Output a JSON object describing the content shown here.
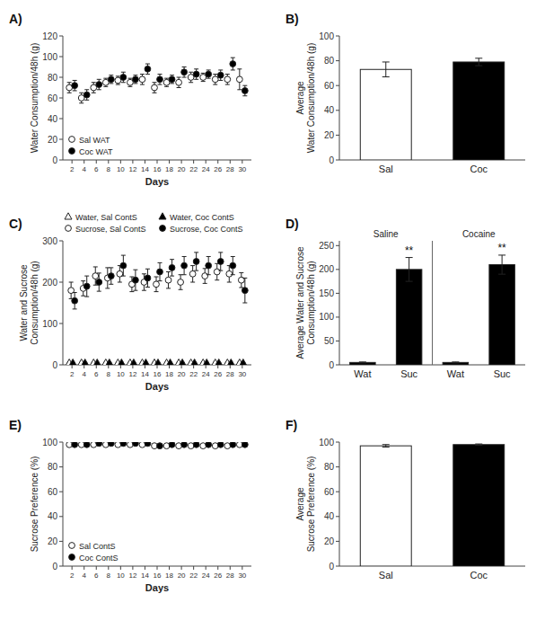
{
  "chart_data": [
    {
      "type": "scatter",
      "title": "A)",
      "x_label": "Days",
      "y_label": "Water Consumption/48h (g)",
      "x": [
        2,
        4,
        6,
        8,
        10,
        12,
        14,
        16,
        18,
        20,
        22,
        24,
        26,
        28,
        30
      ],
      "xlim": [
        0.5,
        31.5
      ],
      "xticks": [
        2,
        4,
        6,
        8,
        10,
        12,
        14,
        16,
        18,
        20,
        22,
        24,
        26,
        28,
        30
      ],
      "ylim": [
        0,
        120
      ],
      "yticks": [
        0,
        20,
        40,
        60,
        80,
        100,
        120
      ],
      "legend": "lower left",
      "series": [
        {
          "name": "Sal WAT",
          "color": "#ffffff",
          "marker": "circle",
          "values": [
            70,
            60,
            70,
            75,
            77,
            75,
            78,
            70,
            75,
            75,
            80,
            80,
            78,
            78,
            78
          ],
          "errors": [
            5,
            5,
            5,
            4,
            4,
            4,
            5,
            5,
            4,
            5,
            5,
            4,
            5,
            5,
            10
          ]
        },
        {
          "name": "Coc WAT",
          "color": "#000000",
          "marker": "circle",
          "values": [
            72,
            63,
            73,
            78,
            80,
            78,
            88,
            78,
            78,
            85,
            83,
            83,
            82,
            93,
            67
          ],
          "errors": [
            5,
            5,
            5,
            4,
            5,
            4,
            5,
            5,
            4,
            5,
            5,
            4,
            5,
            6,
            5
          ]
        }
      ]
    },
    {
      "type": "bar",
      "title": "B)",
      "y_label": "Average\nWater Consumption/48h (g)",
      "categories": [
        "Sal",
        "Coc"
      ],
      "values": [
        73,
        79
      ],
      "errors": [
        6,
        3
      ],
      "colors": [
        "#ffffff",
        "#000000"
      ],
      "ylim": [
        0,
        100
      ],
      "yticks": [
        0,
        20,
        40,
        60,
        80,
        100
      ]
    },
    {
      "type": "scatter",
      "title": "C)",
      "x_label": "Days",
      "y_label": "Water and Sucrose\nConsumption/48h (g)",
      "x": [
        2,
        4,
        6,
        8,
        10,
        12,
        14,
        16,
        18,
        20,
        22,
        24,
        26,
        28,
        30
      ],
      "xlim": [
        0.5,
        31.5
      ],
      "xticks": [
        2,
        4,
        6,
        8,
        10,
        12,
        14,
        16,
        18,
        20,
        22,
        24,
        26,
        28,
        30
      ],
      "ylim": [
        0,
        300
      ],
      "yticks": [
        0,
        100,
        200,
        300
      ],
      "legend": "upper left",
      "series": [
        {
          "name": "Water, Sal ContS",
          "color": "#ffffff",
          "marker": "triangle",
          "values": [
            5,
            5,
            5,
            5,
            5,
            5,
            5,
            5,
            5,
            5,
            5,
            5,
            5,
            5,
            5
          ],
          "errors": [
            1,
            1,
            1,
            1,
            1,
            1,
            1,
            1,
            1,
            1,
            1,
            1,
            1,
            1,
            1
          ]
        },
        {
          "name": "Sucrose, Sal ContS",
          "color": "#ffffff",
          "marker": "circle",
          "values": [
            180,
            185,
            215,
            210,
            220,
            195,
            200,
            195,
            205,
            200,
            220,
            215,
            225,
            220,
            205
          ],
          "errors": [
            20,
            18,
            22,
            25,
            20,
            18,
            20,
            18,
            20,
            18,
            20,
            18,
            20,
            20,
            18
          ]
        },
        {
          "name": "Water, Coc ContS",
          "color": "#000000",
          "marker": "triangle",
          "values": [
            5,
            5,
            5,
            5,
            5,
            5,
            5,
            5,
            5,
            5,
            5,
            5,
            5,
            5,
            5
          ],
          "errors": [
            1,
            1,
            1,
            1,
            1,
            1,
            1,
            1,
            1,
            1,
            1,
            1,
            1,
            1,
            1
          ]
        },
        {
          "name": "Sucrose, Coc ContS",
          "color": "#000000",
          "marker": "circle",
          "values": [
            155,
            190,
            200,
            215,
            240,
            205,
            210,
            225,
            235,
            240,
            250,
            240,
            250,
            240,
            180
          ],
          "errors": [
            20,
            25,
            22,
            20,
            25,
            25,
            22,
            22,
            20,
            22,
            22,
            22,
            22,
            22,
            30
          ]
        }
      ]
    },
    {
      "type": "bar",
      "title": "D)",
      "y_label": "Average Water and Sucrose\nConsumption/48h (g)",
      "categories": [
        "Wat",
        "Suc",
        "Wat",
        "Suc"
      ],
      "values": [
        5,
        200,
        5,
        210
      ],
      "errors": [
        1,
        25,
        1,
        20
      ],
      "color": "#000000",
      "groups": [
        "Saline",
        "Saline",
        "Cocaine",
        "Cocaine"
      ],
      "annotations": [
        null,
        "**",
        null,
        "**"
      ],
      "ylim": [
        0,
        260
      ],
      "yticks": [
        0,
        50,
        100,
        150,
        200,
        250
      ]
    },
    {
      "type": "scatter",
      "title": "E)",
      "x_label": "Days",
      "y_label": "Sucrose Preference (%)",
      "x": [
        2,
        4,
        6,
        8,
        10,
        12,
        14,
        16,
        18,
        20,
        22,
        24,
        26,
        28,
        30
      ],
      "xlim": [
        0.5,
        31.5
      ],
      "xticks": [
        2,
        4,
        6,
        8,
        10,
        12,
        14,
        16,
        18,
        20,
        22,
        24,
        26,
        28,
        30
      ],
      "ylim": [
        0,
        100
      ],
      "yticks": [
        0,
        20,
        40,
        60,
        80,
        100
      ],
      "legend": "lower left",
      "series": [
        {
          "name": "Sal ContS",
          "color": "#ffffff",
          "marker": "circle",
          "values": [
            98,
            98,
            98,
            98,
            98,
            98,
            98,
            97,
            97,
            97,
            97,
            97,
            97,
            97,
            98
          ],
          "errors": [
            1,
            1,
            1,
            1,
            1,
            1,
            1,
            1,
            1,
            1,
            1,
            1,
            1,
            1,
            1
          ]
        },
        {
          "name": "Coc ContS",
          "color": "#000000",
          "marker": "circle",
          "values": [
            98,
            98,
            99,
            99,
            99,
            99,
            99,
            97,
            98,
            98,
            98,
            98,
            98,
            98,
            98
          ],
          "errors": [
            1,
            1,
            0.5,
            0.5,
            0.5,
            0.5,
            0.5,
            1,
            1,
            1,
            1,
            1,
            1,
            1,
            1
          ]
        }
      ]
    },
    {
      "type": "bar",
      "title": "F)",
      "y_label": "Average\nSucrose Preference (%)",
      "categories": [
        "Sal",
        "Coc"
      ],
      "values": [
        97,
        98
      ],
      "errors": [
        1,
        0.5
      ],
      "colors": [
        "#ffffff",
        "#000000"
      ],
      "ylim": [
        0,
        100
      ],
      "yticks": [
        0,
        20,
        40,
        60,
        80,
        100
      ]
    }
  ]
}
